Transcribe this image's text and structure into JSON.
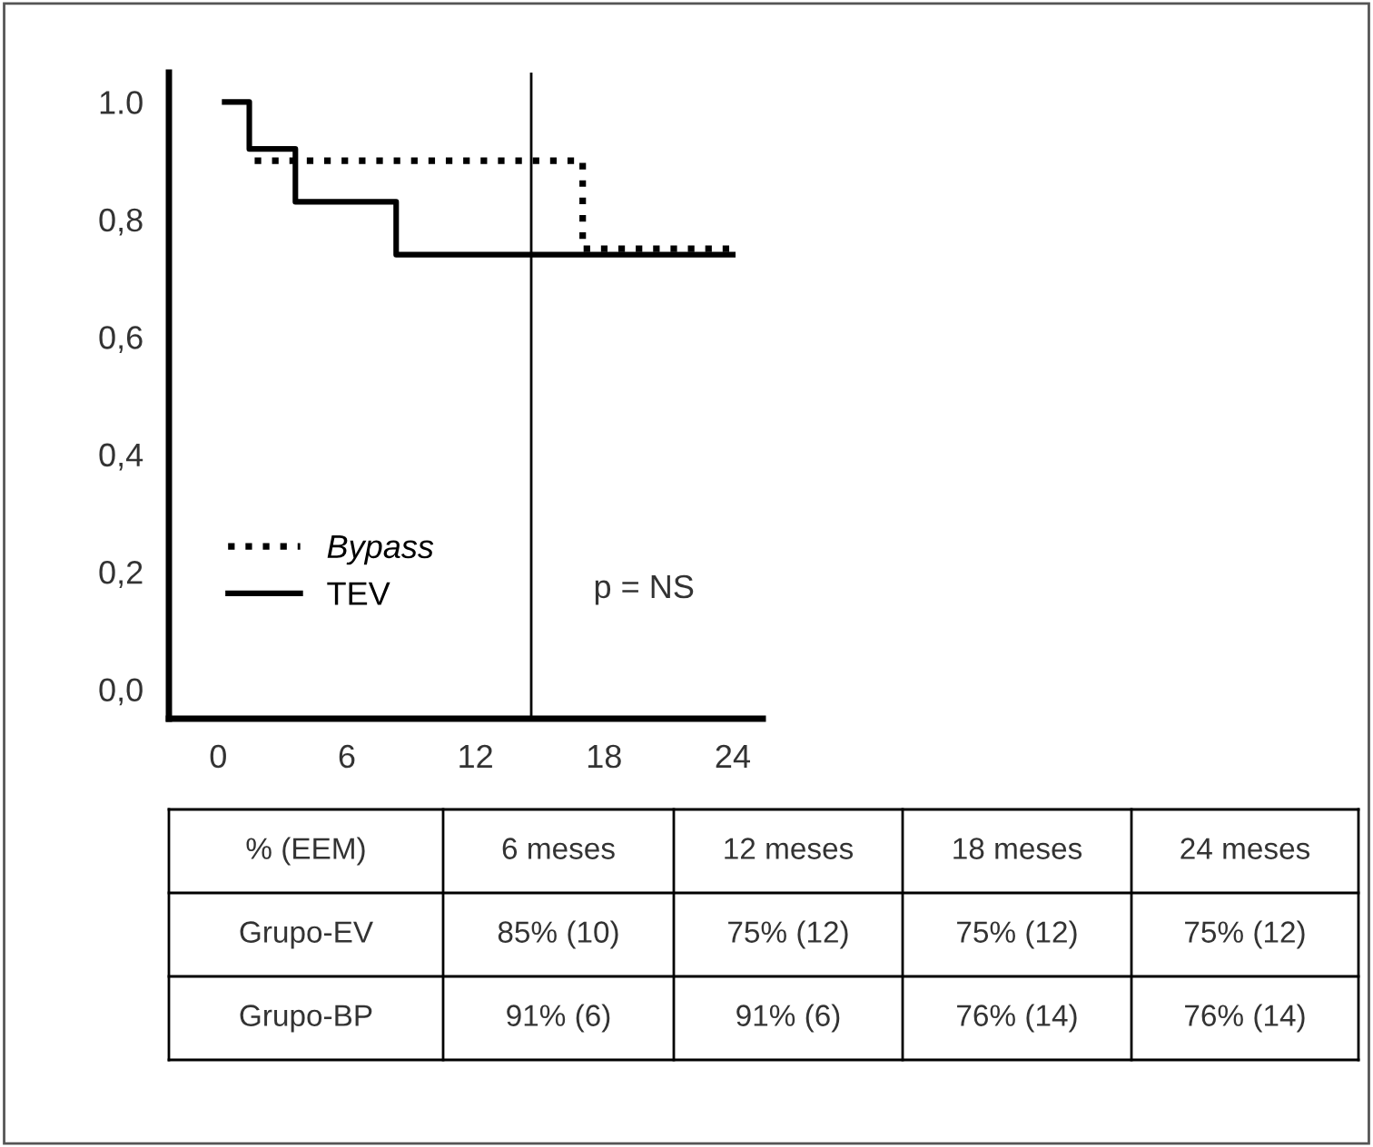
{
  "chart_data": {
    "type": "step",
    "series": [
      {
        "name": "Bypass",
        "color": "#000000",
        "line_style": "dotted",
        "x": [
          1.7,
          17.0,
          24.0
        ],
        "values": [
          0.9,
          0.75,
          0.75
        ]
      },
      {
        "name": "TEV",
        "color": "#000000",
        "line_style": "solid",
        "x": [
          0.3,
          1.45,
          3.6,
          8.3,
          24.0
        ],
        "values": [
          1.0,
          0.92,
          0.83,
          0.74,
          0.74
        ]
      }
    ],
    "xlim": [
      -2.3,
      25.4
    ],
    "ylim": [
      -0.05,
      1.05
    ],
    "xticks": [
      0,
      6,
      12,
      18,
      24
    ],
    "yticks": [
      {
        "value": 0,
        "label": "0,0"
      },
      {
        "value": 0.2,
        "label": "0,2"
      },
      {
        "value": 0.4,
        "label": "0,4"
      },
      {
        "value": 0.6,
        "label": "0,6"
      },
      {
        "value": 0.8,
        "label": "0,8"
      },
      {
        "value": 1.0,
        "label": "1.0"
      }
    ],
    "ref_lines": [
      {
        "axis": "x",
        "value": 14.6,
        "label": null,
        "color": "#000000"
      }
    ],
    "legend": "bottom left",
    "grid": false,
    "marker": "none",
    "annotations": [
      "p = NS",
      "% (EEM)",
      "6 meses",
      "12 meses",
      "18 meses",
      "24 meses",
      "Grupo-EV",
      "85% (10)",
      "75% (12)",
      "75% (12)",
      "75% (12)",
      "Grupo-BP",
      "91% (6)",
      "91% (6)",
      "76% (14)",
      "76% (14)"
    ]
  }
}
